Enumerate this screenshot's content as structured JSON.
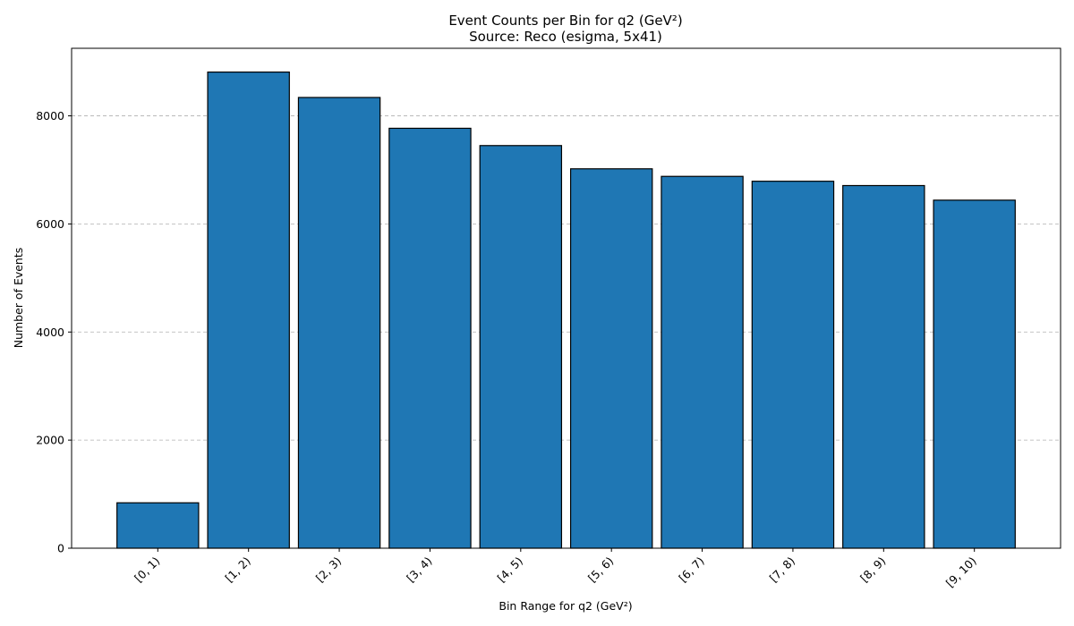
{
  "chart_data": {
    "type": "bar",
    "title": "Event Counts per Bin for q2 (GeV²)",
    "subtitle": "Source: Reco (esigma, 5x41)",
    "xlabel": "Bin Range for q2 (GeV²)",
    "ylabel": "Number of Events",
    "categories": [
      "[0, 1)",
      "[1, 2)",
      "[2, 3)",
      "[3, 4)",
      "[4, 5)",
      "[5, 6)",
      "[6, 7)",
      "[7, 8)",
      "[8, 9)",
      "[9, 10)"
    ],
    "values": [
      840,
      8810,
      8340,
      7770,
      7450,
      7020,
      6880,
      6790,
      6710,
      6440
    ],
    "ylim": [
      0,
      9250
    ],
    "yticks": [
      0,
      2000,
      4000,
      6000,
      8000
    ],
    "grid": "y-dashed",
    "bar_color": "#1f77b4",
    "edge_color": "#000000"
  }
}
